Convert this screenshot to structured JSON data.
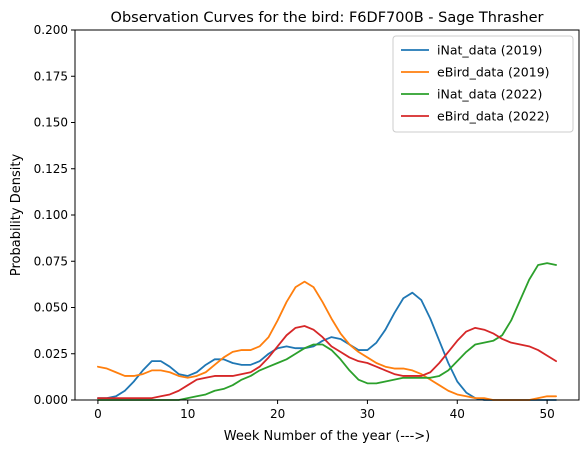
{
  "chart_data": {
    "type": "line",
    "title": "Observation Curves for the bird: F6DF700B - Sage Thrasher",
    "xlabel": "Week Number of the year (--->)",
    "ylabel": "Probability Density",
    "xlim": [
      -2.55,
      53.55
    ],
    "ylim": [
      0,
      0.2
    ],
    "xticks": [
      0,
      10,
      20,
      30,
      40,
      50
    ],
    "xtick_labels": [
      "0",
      "10",
      "20",
      "30",
      "40",
      "50"
    ],
    "yticks": [
      0,
      0.025,
      0.05,
      0.075,
      0.1,
      0.125,
      0.15,
      0.175,
      0.2
    ],
    "ytick_labels": [
      "0.000",
      "0.025",
      "0.050",
      "0.075",
      "0.100",
      "0.125",
      "0.150",
      "0.175",
      "0.200"
    ],
    "grid": false,
    "legend_position": "top-right",
    "x": [
      0,
      1,
      2,
      3,
      4,
      5,
      6,
      7,
      8,
      9,
      10,
      11,
      12,
      13,
      14,
      15,
      16,
      17,
      18,
      19,
      20,
      21,
      22,
      23,
      24,
      25,
      26,
      27,
      28,
      29,
      30,
      31,
      32,
      33,
      34,
      35,
      36,
      37,
      38,
      39,
      40,
      41,
      42,
      43,
      44,
      45,
      46,
      47,
      48,
      49,
      50,
      51
    ],
    "series": [
      {
        "name": "iNat_data (2019)",
        "color": "#1f77b4",
        "values": [
          0.001,
          0.001,
          0.002,
          0.005,
          0.01,
          0.016,
          0.021,
          0.021,
          0.018,
          0.014,
          0.013,
          0.015,
          0.019,
          0.022,
          0.022,
          0.02,
          0.019,
          0.019,
          0.021,
          0.025,
          0.028,
          0.029,
          0.028,
          0.028,
          0.029,
          0.032,
          0.034,
          0.033,
          0.03,
          0.027,
          0.027,
          0.031,
          0.038,
          0.047,
          0.055,
          0.058,
          0.054,
          0.044,
          0.032,
          0.02,
          0.01,
          0.004,
          0.001,
          0.0,
          0.0,
          0.0,
          0.0,
          0.0,
          0.0,
          0.0,
          0.0,
          0.0
        ]
      },
      {
        "name": "eBird_data (2019)",
        "color": "#ff7f0e",
        "values": [
          0.018,
          0.017,
          0.015,
          0.013,
          0.013,
          0.014,
          0.016,
          0.016,
          0.015,
          0.013,
          0.012,
          0.013,
          0.015,
          0.019,
          0.023,
          0.026,
          0.027,
          0.027,
          0.029,
          0.034,
          0.043,
          0.053,
          0.061,
          0.064,
          0.061,
          0.053,
          0.044,
          0.036,
          0.03,
          0.026,
          0.023,
          0.02,
          0.018,
          0.017,
          0.017,
          0.016,
          0.014,
          0.011,
          0.008,
          0.005,
          0.003,
          0.002,
          0.001,
          0.001,
          0.0,
          0.0,
          0.0,
          0.0,
          0.0,
          0.001,
          0.002,
          0.002
        ]
      },
      {
        "name": "iNat_data (2022)",
        "color": "#2ca02c",
        "values": [
          0.0,
          0.0,
          0.0,
          0.0,
          0.0,
          0.0,
          0.0,
          0.0,
          0.0,
          0.0,
          0.001,
          0.002,
          0.003,
          0.005,
          0.006,
          0.008,
          0.011,
          0.013,
          0.016,
          0.018,
          0.02,
          0.022,
          0.025,
          0.028,
          0.03,
          0.03,
          0.027,
          0.022,
          0.016,
          0.011,
          0.009,
          0.009,
          0.01,
          0.011,
          0.012,
          0.012,
          0.012,
          0.012,
          0.013,
          0.016,
          0.021,
          0.026,
          0.03,
          0.031,
          0.032,
          0.035,
          0.043,
          0.054,
          0.065,
          0.073,
          0.074,
          0.073
        ]
      },
      {
        "name": "eBird_data (2022)",
        "color": "#d62728",
        "values": [
          0.001,
          0.001,
          0.001,
          0.001,
          0.001,
          0.001,
          0.001,
          0.002,
          0.003,
          0.005,
          0.008,
          0.011,
          0.012,
          0.013,
          0.013,
          0.013,
          0.014,
          0.015,
          0.018,
          0.023,
          0.029,
          0.035,
          0.039,
          0.04,
          0.038,
          0.034,
          0.029,
          0.026,
          0.023,
          0.021,
          0.02,
          0.018,
          0.016,
          0.014,
          0.013,
          0.013,
          0.013,
          0.015,
          0.02,
          0.026,
          0.032,
          0.037,
          0.039,
          0.038,
          0.036,
          0.033,
          0.031,
          0.03,
          0.029,
          0.027,
          0.024,
          0.021
        ]
      }
    ]
  }
}
